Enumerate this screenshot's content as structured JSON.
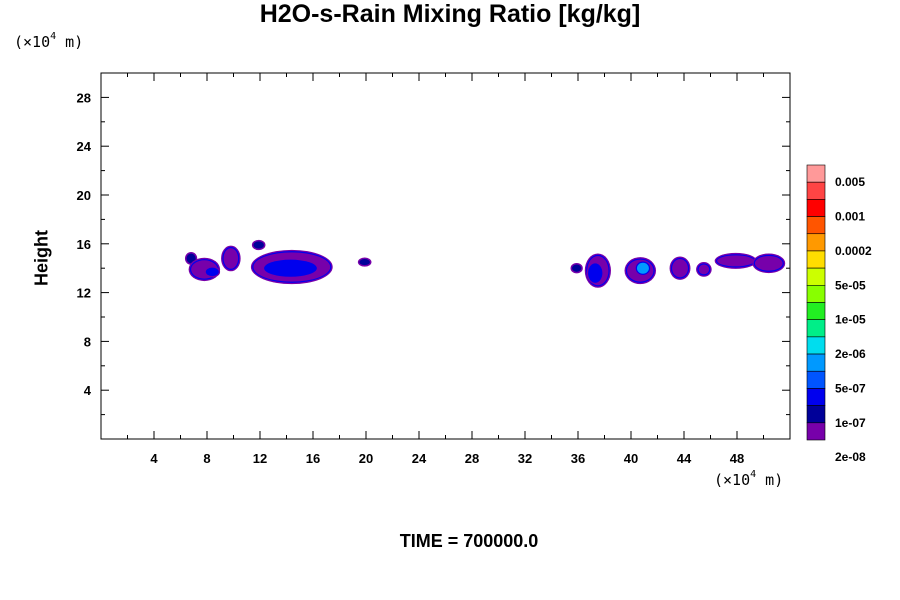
{
  "chart_data": {
    "type": "heatmap",
    "title": "H2O-s-Rain Mixing Ratio [kg/kg]",
    "ylabel": "Height",
    "xlabel": "",
    "x_unit": {
      "prefix": "(×10",
      "exp": "4",
      "suffix": " m)"
    },
    "y_unit": {
      "prefix": "(×10",
      "exp": "4",
      "suffix": " m)"
    },
    "xlim": [
      0,
      52
    ],
    "ylim": [
      0,
      30
    ],
    "x_ticks": [
      "4",
      "8",
      "12",
      "16",
      "20",
      "24",
      "28",
      "32",
      "36",
      "40",
      "44",
      "48"
    ],
    "y_ticks": [
      "4",
      "8",
      "12",
      "16",
      "20",
      "24",
      "28"
    ],
    "footer": "TIME = 700000.0",
    "colorbar": {
      "colors": [
        "#ff9999",
        "#ff4444",
        "#ff0000",
        "#ff5500",
        "#ff9900",
        "#ffdd00",
        "#ccff00",
        "#88ff00",
        "#22ee22",
        "#00ee88",
        "#00ddee",
        "#0099ff",
        "#0055ff",
        "#0000ee",
        "#000099",
        "#7700aa"
      ],
      "labels": [
        "0.005",
        "0.001",
        "0.0002",
        "5e-05",
        "1e-05",
        "2e-06",
        "5e-07",
        "1e-07",
        "2e-08"
      ]
    },
    "cells": [
      {
        "x": 6.8,
        "y": 14.8,
        "w": 0.7,
        "h": 0.8,
        "level": "2e-08"
      },
      {
        "x": 7.8,
        "y": 13.9,
        "w": 2.0,
        "h": 1.5,
        "level": "1e-07"
      },
      {
        "x": 9.8,
        "y": 14.8,
        "w": 1.1,
        "h": 1.7,
        "level": "1e-07"
      },
      {
        "x": 8.4,
        "y": 13.7,
        "w": 0.8,
        "h": 0.5,
        "level": "5e-07"
      },
      {
        "x": 14.4,
        "y": 14.1,
        "w": 5.8,
        "h": 2.4,
        "level": "1e-07"
      },
      {
        "x": 14.3,
        "y": 14.0,
        "w": 3.8,
        "h": 1.2,
        "level": "5e-07"
      },
      {
        "x": 11.9,
        "y": 15.9,
        "w": 0.8,
        "h": 0.6,
        "level": "2e-08"
      },
      {
        "x": 19.9,
        "y": 14.5,
        "w": 0.8,
        "h": 0.5,
        "level": "2e-08"
      },
      {
        "x": 35.9,
        "y": 14.0,
        "w": 0.7,
        "h": 0.6,
        "level": "2e-08"
      },
      {
        "x": 37.5,
        "y": 13.8,
        "w": 1.6,
        "h": 2.4,
        "level": "1e-07"
      },
      {
        "x": 37.3,
        "y": 13.6,
        "w": 0.9,
        "h": 1.4,
        "level": "5e-07"
      },
      {
        "x": 40.7,
        "y": 13.8,
        "w": 2.0,
        "h": 1.8,
        "level": "1e-07"
      },
      {
        "x": 40.9,
        "y": 14.0,
        "w": 0.9,
        "h": 0.9,
        "level": "2e-06"
      },
      {
        "x": 43.7,
        "y": 14.0,
        "w": 1.2,
        "h": 1.5,
        "level": "1e-07"
      },
      {
        "x": 45.5,
        "y": 13.9,
        "w": 0.8,
        "h": 0.8,
        "level": "1e-07"
      },
      {
        "x": 47.9,
        "y": 14.6,
        "w": 2.8,
        "h": 0.9,
        "level": "1e-07"
      },
      {
        "x": 50.4,
        "y": 14.4,
        "w": 2.1,
        "h": 1.2,
        "level": "1e-07"
      }
    ]
  }
}
